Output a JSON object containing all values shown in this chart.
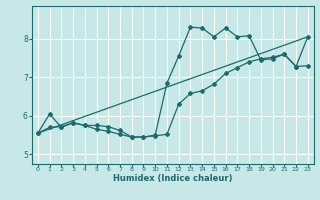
{
  "xlabel": "Humidex (Indice chaleur)",
  "ylabel": "",
  "xlim": [
    -0.5,
    23.5
  ],
  "ylim": [
    4.75,
    8.85
  ],
  "bg_color": "#c8e8e8",
  "grid_color": "#ffffff",
  "line_color": "#1a6b6b",
  "xticks": [
    0,
    1,
    2,
    3,
    4,
    5,
    6,
    7,
    8,
    9,
    10,
    11,
    12,
    13,
    14,
    15,
    16,
    17,
    18,
    19,
    20,
    21,
    22,
    23
  ],
  "yticks": [
    5,
    6,
    7,
    8
  ],
  "line1_x": [
    0,
    1,
    2,
    3,
    4,
    5,
    6,
    7,
    8,
    9,
    10,
    11,
    12,
    13,
    14,
    15,
    16,
    17,
    18,
    19,
    20,
    21,
    22,
    23
  ],
  "line1_y": [
    5.55,
    6.05,
    5.7,
    5.82,
    5.75,
    5.75,
    5.72,
    5.62,
    5.45,
    5.45,
    5.5,
    6.85,
    7.55,
    8.3,
    8.28,
    8.05,
    8.28,
    8.05,
    8.08,
    7.45,
    7.48,
    7.6,
    7.28,
    8.05
  ],
  "line2_x": [
    0,
    1,
    2,
    3,
    4,
    5,
    6,
    7,
    8,
    9,
    10,
    11,
    12,
    13,
    14,
    15,
    16,
    17,
    18,
    19,
    20,
    21,
    22,
    23
  ],
  "line2_y": [
    5.55,
    5.7,
    5.72,
    5.82,
    5.75,
    5.65,
    5.6,
    5.52,
    5.45,
    5.45,
    5.48,
    5.52,
    6.3,
    6.58,
    6.65,
    6.82,
    7.1,
    7.25,
    7.4,
    7.48,
    7.52,
    7.6,
    7.28,
    7.3
  ],
  "line3_x": [
    0,
    23
  ],
  "line3_y": [
    5.55,
    8.05
  ]
}
